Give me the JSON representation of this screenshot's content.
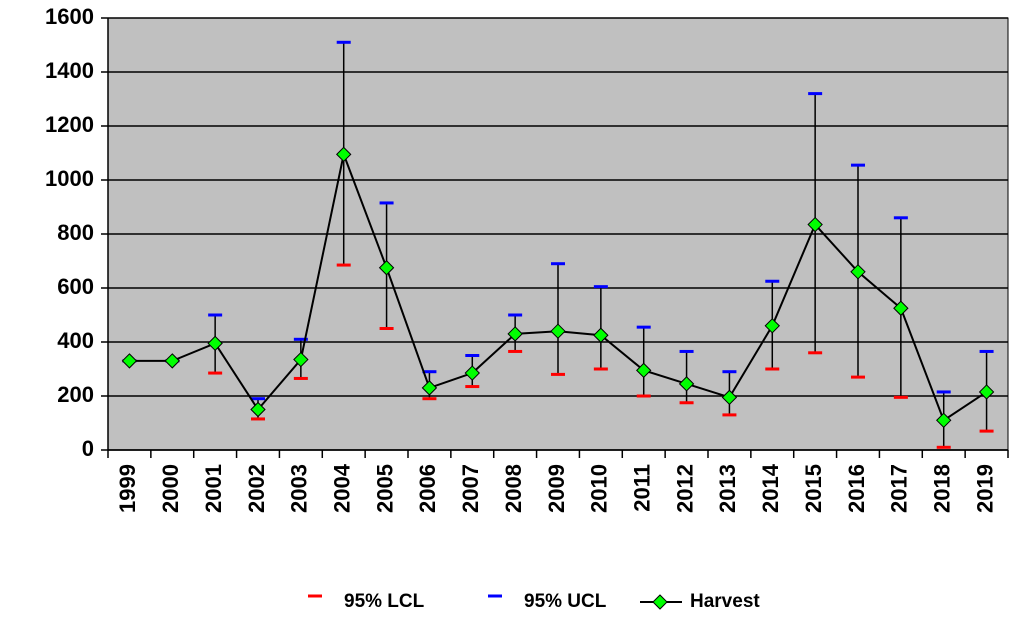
{
  "chart_data": {
    "type": "line",
    "categories": [
      "1999",
      "2000",
      "2001",
      "2002",
      "2003",
      "2004",
      "2005",
      "2006",
      "2007",
      "2008",
      "2009",
      "2010",
      "2011",
      "2012",
      "2013",
      "2014",
      "2015",
      "2016",
      "2017",
      "2018",
      "2019"
    ],
    "series": [
      {
        "name": "95% LCL",
        "color": "#ff0000",
        "marker": "dash",
        "values": [
          330,
          330,
          285,
          115,
          265,
          685,
          450,
          190,
          235,
          365,
          280,
          300,
          200,
          175,
          130,
          300,
          360,
          270,
          195,
          10,
          70
        ]
      },
      {
        "name": "95% UCL",
        "color": "#0000ff",
        "marker": "dash",
        "values": [
          330,
          330,
          500,
          190,
          410,
          1510,
          915,
          290,
          350,
          500,
          690,
          605,
          455,
          365,
          290,
          625,
          1320,
          1055,
          860,
          215,
          365
        ]
      },
      {
        "name": "Harvest",
        "color": "#00ff00",
        "marker": "diamond",
        "line_color": "#000000",
        "values": [
          330,
          330,
          395,
          150,
          335,
          1095,
          675,
          230,
          285,
          430,
          440,
          425,
          295,
          245,
          195,
          460,
          835,
          660,
          525,
          110,
          215
        ]
      }
    ],
    "error_bars": true,
    "ylim": [
      0,
      1600
    ],
    "yticks": [
      0,
      200,
      400,
      600,
      800,
      1000,
      1200,
      1400,
      1600
    ],
    "grid": true,
    "plot_background": "#c0c0c0",
    "legend": "bottom"
  }
}
